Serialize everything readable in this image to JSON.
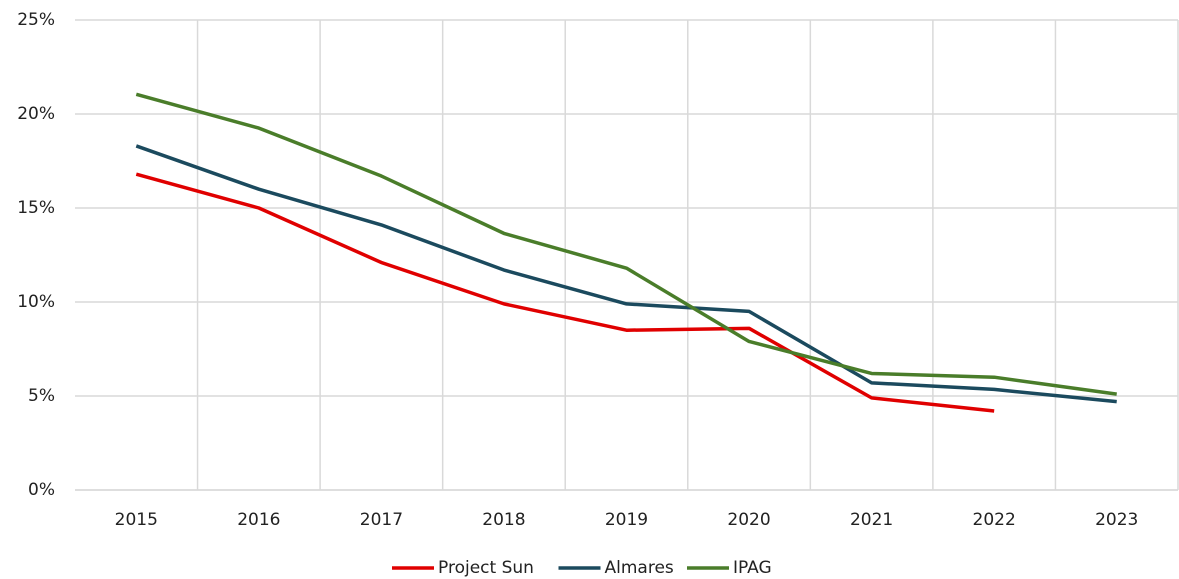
{
  "chart_data": {
    "type": "line",
    "categories": [
      "2015",
      "2016",
      "2017",
      "2018",
      "2019",
      "2020",
      "2021",
      "2022",
      "2023"
    ],
    "series": [
      {
        "name": "Project Sun",
        "color": "#e00000",
        "values": [
          16.8,
          15.0,
          12.1,
          9.9,
          8.5,
          8.6,
          4.9,
          4.2,
          null
        ]
      },
      {
        "name": "Almares",
        "color": "#1b4a5e",
        "values": [
          18.3,
          16.0,
          14.1,
          11.7,
          9.9,
          9.5,
          5.7,
          5.35,
          4.7
        ]
      },
      {
        "name": "IPAG",
        "color": "#4a7d2a",
        "values": [
          21.05,
          19.25,
          16.7,
          13.65,
          11.8,
          7.9,
          6.2,
          6.0,
          5.1
        ]
      }
    ],
    "ylim": [
      0,
      25
    ],
    "yticks": [
      {
        "value": 0,
        "label": "0%"
      },
      {
        "value": 5,
        "label": "5%"
      },
      {
        "value": 10,
        "label": "10%"
      },
      {
        "value": 15,
        "label": "15%"
      },
      {
        "value": 20,
        "label": "20%"
      },
      {
        "value": 25,
        "label": "25%"
      }
    ],
    "grid": true,
    "legend": "bottom"
  }
}
